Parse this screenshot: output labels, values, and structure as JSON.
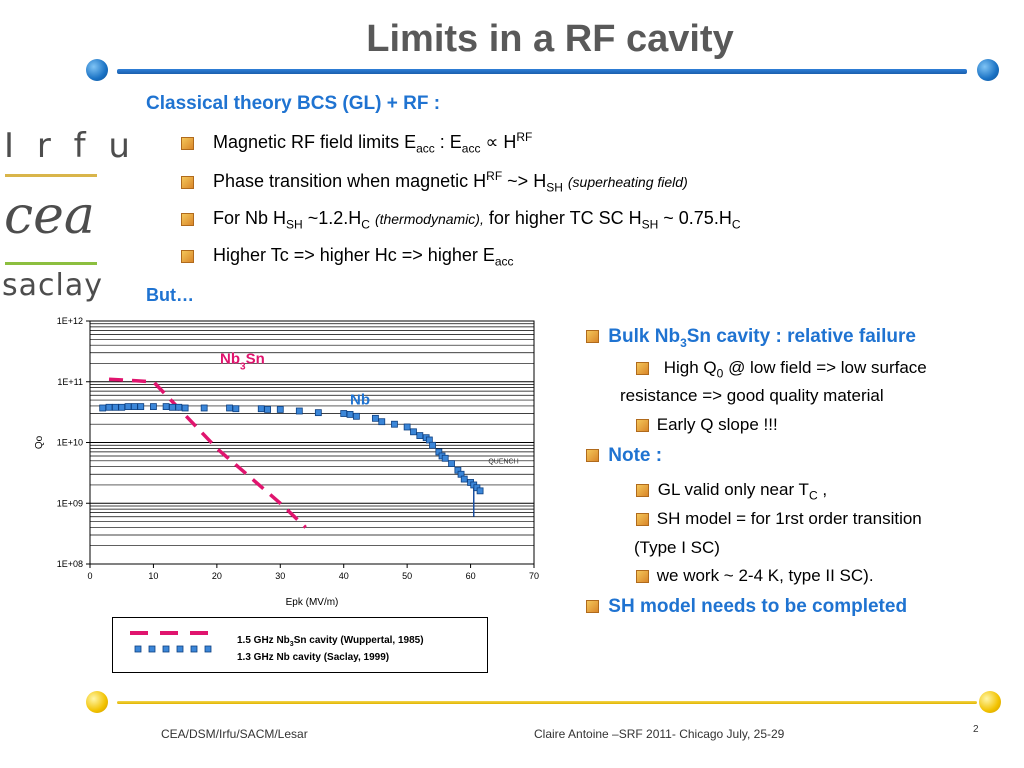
{
  "slide": {
    "title": "Limits in a RF cavity",
    "page_number": "2"
  },
  "logos": {
    "irfu": "I r f u",
    "cea": "cea",
    "saclay": "saclay"
  },
  "left_column": {
    "heading": "Classical theory BCS (GL) + RF :",
    "bullets": [
      {
        "parts": [
          "Magnetic RF field limits E",
          "acc",
          " : E",
          "acc",
          " ∝ H",
          "RF"
        ]
      },
      {
        "parts": [
          "Phase transition when magnetic H",
          "RF",
          " ~> H",
          "SH",
          " ",
          "(superheating field)"
        ]
      },
      {
        "parts": [
          "For Nb H",
          "SH",
          " ~1.2.H",
          "C",
          "  ",
          "(thermodynamic),",
          " for higher TC SC H",
          "SH",
          " ~ 0.75.H",
          "C"
        ]
      },
      {
        "parts": [
          "Higher Tc => higher Hc => higher E",
          "acc"
        ]
      }
    ],
    "but": "But…"
  },
  "right_column": {
    "head1": {
      "parts": [
        "Bulk Nb",
        "3",
        "Sn cavity : relative failure"
      ]
    },
    "sub1": {
      "parts": [
        "High Q",
        "0",
        " @ low field => low surface"
      ]
    },
    "sub1b": "resistance => good quality material",
    "sub2": "Early Q slope !!!",
    "head2": "Note :",
    "sub3": {
      "parts": [
        "GL valid only near T",
        "C",
        " ,"
      ]
    },
    "sub4": "SH model = for 1rst order transition",
    "sub4b": "(Type I SC)",
    "sub5": "we work ~ 2-4 K, type II SC).",
    "head3": "SH model needs to be completed"
  },
  "chart_data": {
    "type": "scatter",
    "xlabel": "Epk (MV/m)",
    "ylabel": "Qo",
    "xlim": [
      0,
      70
    ],
    "ylim": [
      100000000,
      1000000000000
    ],
    "y_scale": "log",
    "x_ticks": [
      "0",
      "10",
      "20",
      "30",
      "40",
      "50",
      "60",
      "70"
    ],
    "y_ticks": [
      "1E+08",
      "1E+09",
      "1E+10",
      "1E+11",
      "1E+12"
    ],
    "annotations": {
      "nb3sn_label": {
        "parts": [
          "Nb",
          "3",
          "Sn"
        ]
      },
      "nb_label": "Nb",
      "quench_label": "QUENCH"
    },
    "colors": {
      "nb3sn": "#e0146e",
      "nb": "#3b86d8",
      "nb_label": "#1f73d1"
    },
    "series": [
      {
        "name": "1.5 GHz Nb3Sn cavity (Wuppertal, 1985)",
        "style": "dashed",
        "points": [
          [
            3,
            110000000000
          ],
          [
            10,
            100000000000
          ],
          [
            20,
            8000000000
          ],
          [
            30,
            1000000000
          ],
          [
            34,
            400000000
          ]
        ]
      },
      {
        "name": "1.3 GHz Nb cavity (Saclay, 1999)",
        "style": "markers",
        "points": [
          [
            2,
            37000000000
          ],
          [
            3,
            38000000000
          ],
          [
            4,
            38000000000
          ],
          [
            5,
            38000000000
          ],
          [
            6,
            39000000000
          ],
          [
            7,
            39000000000
          ],
          [
            8,
            39000000000
          ],
          [
            10,
            39000000000
          ],
          [
            12,
            39000000000
          ],
          [
            13,
            38000000000
          ],
          [
            14,
            38000000000
          ],
          [
            15,
            37000000000
          ],
          [
            18,
            37000000000
          ],
          [
            22,
            37000000000
          ],
          [
            23,
            36000000000
          ],
          [
            27,
            36000000000
          ],
          [
            28,
            35000000000
          ],
          [
            30,
            35000000000
          ],
          [
            33,
            33000000000
          ],
          [
            36,
            31000000000
          ],
          [
            40,
            30000000000
          ],
          [
            41,
            29000000000
          ],
          [
            42,
            27000000000
          ],
          [
            45,
            25000000000
          ],
          [
            46,
            22000000000
          ],
          [
            48,
            20000000000
          ],
          [
            50,
            18000000000
          ],
          [
            51,
            15000000000
          ],
          [
            52,
            13000000000
          ],
          [
            53,
            12000000000
          ],
          [
            53.5,
            11000000000
          ],
          [
            54,
            9000000000
          ],
          [
            55,
            7000000000
          ],
          [
            55.5,
            6000000000
          ],
          [
            56,
            5500000000
          ],
          [
            57,
            4500000000
          ],
          [
            58,
            3500000000
          ],
          [
            58.5,
            3000000000
          ],
          [
            59,
            2500000000
          ],
          [
            60,
            2200000000
          ],
          [
            60.5,
            2000000000
          ],
          [
            61,
            1800000000
          ],
          [
            61.5,
            1600000000
          ]
        ],
        "quench": {
          "x": 60.5,
          "from": 2000000000,
          "to": 600000000
        }
      }
    ],
    "legend": {
      "entries": [
        {
          "parts": [
            "1.5 GHz Nb",
            "3",
            "Sn cavity (Wuppertal, 1985)"
          ]
        },
        {
          "parts": [
            "1.3 GHz Nb cavity (Saclay, 1999)"
          ]
        }
      ]
    }
  },
  "footer": {
    "left": "CEA/DSM/Irfu/SACM/Lesar",
    "center": "Claire Antoine –SRF 2011- Chicago July, 25-29"
  }
}
